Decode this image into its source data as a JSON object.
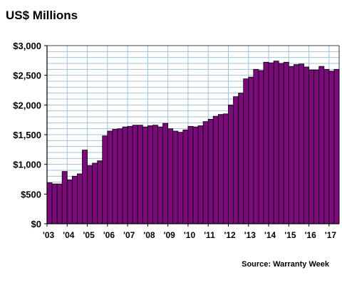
{
  "title": "US$ Millions",
  "source": "Source: Warranty Week",
  "colors": {
    "bar": "#7b0a7b",
    "bar_edge": "#000000",
    "grid": "#9fc3dc"
  },
  "chart_data": {
    "type": "bar",
    "title": "US$ Millions",
    "xlabel": "",
    "ylabel": "",
    "ylim": [
      0,
      3000
    ],
    "grid": true,
    "y_ticks": [
      "$0",
      "$500",
      "$1,000",
      "$1,500",
      "$2,000",
      "$2,500",
      "$3,000"
    ],
    "y_tick_values": [
      0,
      500,
      1000,
      1500,
      2000,
      2500,
      3000
    ],
    "x_ticks": [
      "'03",
      "'04",
      "'05",
      "'06",
      "'07",
      "'08",
      "'09",
      "'10",
      "'11",
      "'12",
      "'13",
      "'14",
      "'15",
      "'16",
      "'17"
    ],
    "categories": [
      "Q1 2003",
      "Q2 2003",
      "Q3 2003",
      "Q4 2003",
      "Q1 2004",
      "Q2 2004",
      "Q3 2004",
      "Q4 2004",
      "Q1 2005",
      "Q2 2005",
      "Q3 2005",
      "Q4 2005",
      "Q1 2006",
      "Q2 2006",
      "Q3 2006",
      "Q4 2006",
      "Q1 2007",
      "Q2 2007",
      "Q3 2007",
      "Q4 2007",
      "Q1 2008",
      "Q2 2008",
      "Q3 2008",
      "Q4 2008",
      "Q1 2009",
      "Q2 2009",
      "Q3 2009",
      "Q4 2009",
      "Q1 2010",
      "Q2 2010",
      "Q3 2010",
      "Q4 2010",
      "Q1 2011",
      "Q2 2011",
      "Q3 2011",
      "Q4 2011",
      "Q1 2012",
      "Q2 2012",
      "Q3 2012",
      "Q4 2012",
      "Q1 2013",
      "Q2 2013",
      "Q3 2013",
      "Q4 2013",
      "Q1 2014",
      "Q2 2014",
      "Q3 2014",
      "Q4 2014",
      "Q1 2015",
      "Q2 2015",
      "Q3 2015",
      "Q4 2015",
      "Q1 2016",
      "Q2 2016",
      "Q3 2016",
      "Q4 2016",
      "Q1 2017",
      "Q2 2017"
    ],
    "values": [
      690,
      670,
      670,
      880,
      740,
      800,
      840,
      1240,
      980,
      1020,
      1060,
      1480,
      1560,
      1590,
      1600,
      1630,
      1640,
      1660,
      1660,
      1630,
      1650,
      1660,
      1630,
      1690,
      1600,
      1560,
      1540,
      1580,
      1640,
      1630,
      1650,
      1720,
      1760,
      1810,
      1840,
      1850,
      2000,
      2140,
      2200,
      2440,
      2470,
      2600,
      2580,
      2720,
      2710,
      2740,
      2700,
      2720,
      2650,
      2680,
      2690,
      2640,
      2590,
      2590,
      2650,
      2600,
      2570,
      2600
    ]
  }
}
